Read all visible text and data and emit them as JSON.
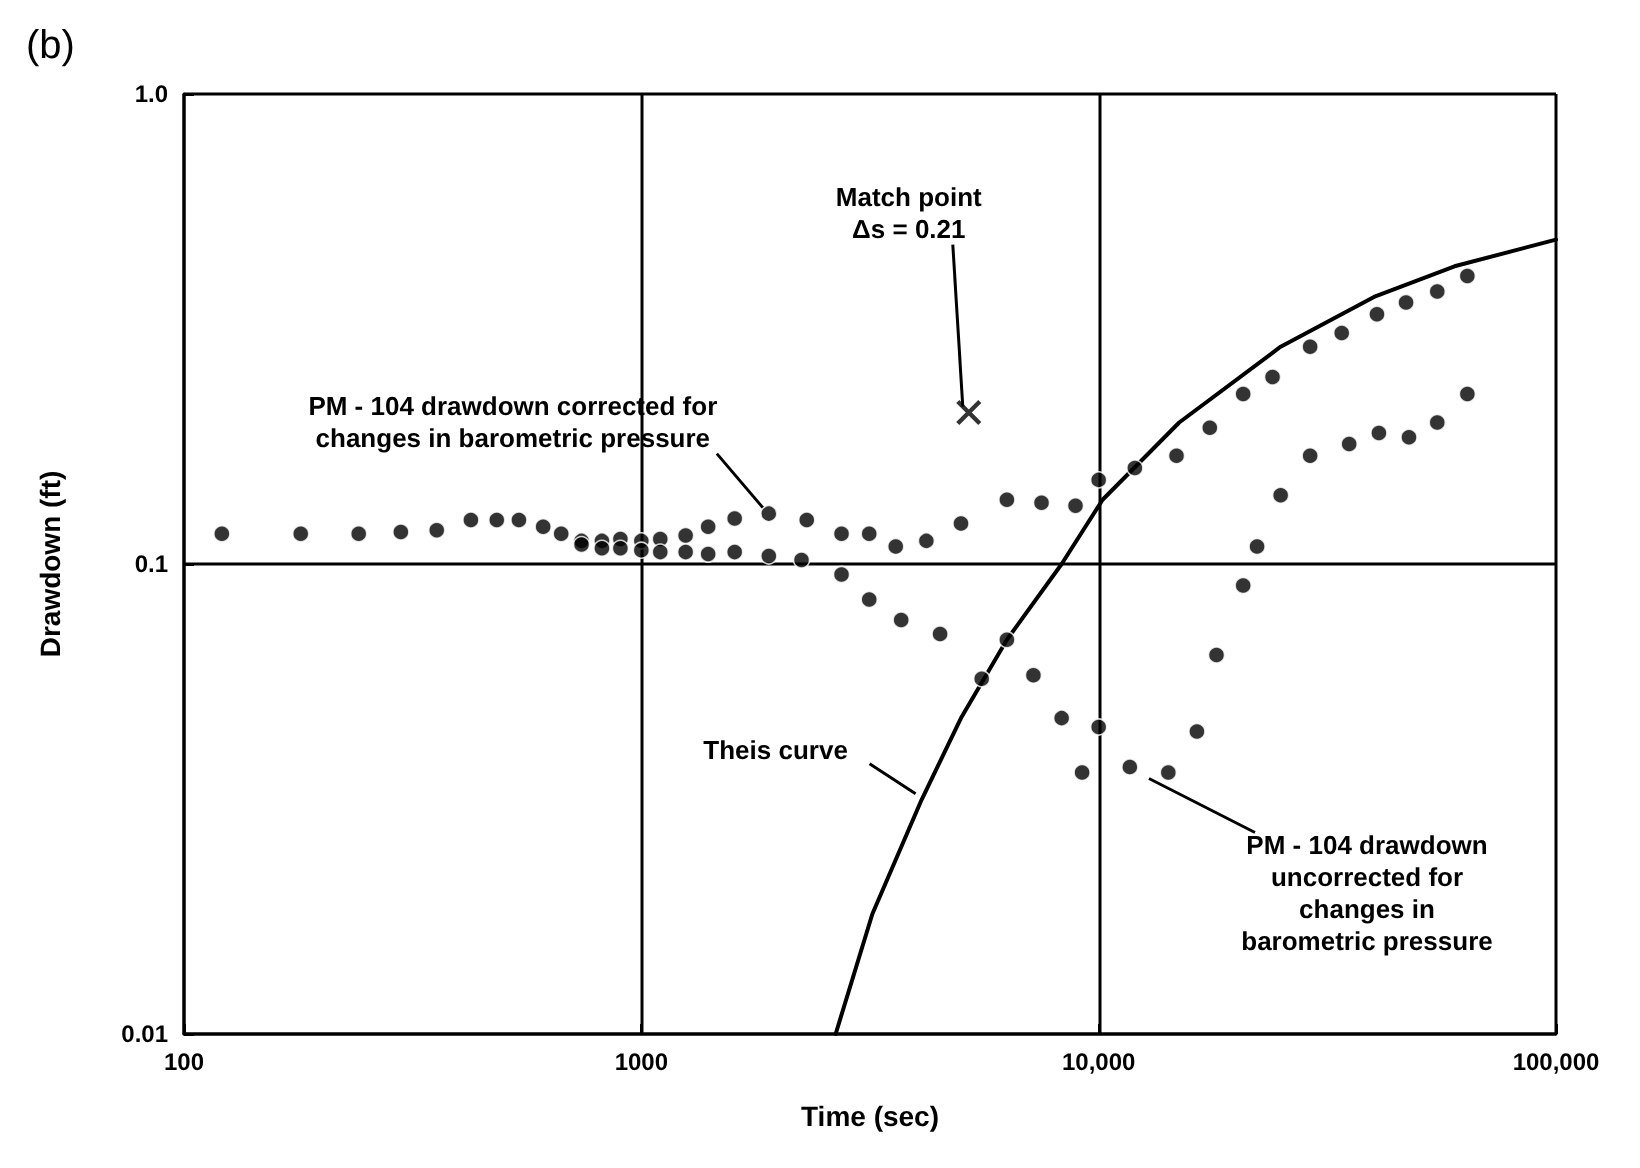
{
  "chart_data": {
    "type": "scatter",
    "title": "(b)",
    "xlabel": "Time (sec)",
    "ylabel": "Drawdown (ft)",
    "log": "xy",
    "grid": true,
    "xlim": [
      100,
      100000
    ],
    "xticks": [
      100,
      1000,
      {
        "value": 10000,
        "label": "10,000"
      },
      {
        "value": 100000,
        "label": "100,000"
      }
    ],
    "ylim": [
      0.01,
      1
    ],
    "yticks": [
      0.01,
      0.1,
      {
        "value": 1,
        "label": "1.0"
      }
    ],
    "series": [
      {
        "marker": "circle",
        "color": "#000000",
        "x": [
          121,
          180,
          241,
          298,
          357,
          424,
          483,
          540,
          610,
          668,
          740,
          820,
          900,
          1000,
          1100,
          1250,
          1400,
          1600,
          1900,
          2300,
          2740,
          3150,
          3600,
          4200,
          5000,
          6300,
          7500,
          8900,
          10000,
          12000,
          14800,
          17500,
          20700,
          24000,
          29000,
          34000,
          40600,
          47000,
          55000,
          64000
        ],
        "values": [
          0.116,
          0.116,
          0.116,
          0.117,
          0.118,
          0.124,
          0.124,
          0.124,
          0.12,
          0.116,
          0.112,
          0.112,
          0.113,
          0.112,
          0.113,
          0.115,
          0.12,
          0.125,
          0.128,
          0.124,
          0.116,
          0.116,
          0.109,
          0.112,
          0.122,
          0.137,
          0.135,
          0.133,
          0.151,
          0.16,
          0.17,
          0.195,
          0.23,
          0.25,
          0.29,
          0.31,
          0.34,
          0.36,
          0.38,
          0.41
        ]
      },
      {
        "marker": "circle",
        "color": "#000000",
        "x": [
          740,
          820,
          900,
          1000,
          1100,
          1250,
          1400,
          1600,
          1900,
          2240,
          2740,
          3150,
          3700,
          4500,
          5550,
          6300,
          7200,
          8300,
          9200,
          10000,
          11700,
          14200,
          16400,
          18100,
          20700,
          22200,
          25000,
          29000,
          35300,
          41000,
          47700,
          55000,
          64000
        ],
        "values": [
          0.11,
          0.108,
          0.108,
          0.107,
          0.106,
          0.106,
          0.105,
          0.106,
          0.104,
          0.102,
          0.095,
          0.084,
          0.076,
          0.071,
          0.057,
          0.069,
          0.058,
          0.047,
          0.036,
          0.045,
          0.037,
          0.036,
          0.044,
          0.064,
          0.09,
          0.109,
          0.14,
          0.17,
          0.18,
          0.19,
          0.186,
          0.2,
          0.23
        ]
      },
      {
        "type": "line",
        "marker": "none",
        "color": "#000000",
        "x": [
          2660,
          3200,
          4100,
          5000,
          6300,
          8300,
          10200,
          15000,
          25000,
          40000,
          60000,
          100000
        ],
        "values": [
          0.01,
          0.018,
          0.0315,
          0.047,
          0.069,
          0.1,
          0.137,
          0.2,
          0.29,
          0.37,
          0.43,
          0.49
        ]
      },
      {
        "marker": "cross",
        "color": "#000000",
        "x": [
          5200
        ],
        "values": [
          0.21
        ]
      }
    ],
    "annotations": [
      {
        "text": "Match point\nΔs = 0.21",
        "x": 5200,
        "y": 0.21
      },
      {
        "text": "PM - 104 drawdown corrected for\nchanges in barometric pressure",
        "x": 1900,
        "y": 0.128
      },
      {
        "text": "Theis curve",
        "x": 4100,
        "y": 0.0315
      },
      {
        "text": "PM - 104 drawdown\nuncorrected for\nchanges in\nbarometric pressure",
        "x": 12500,
        "y": 0.036
      }
    ]
  }
}
